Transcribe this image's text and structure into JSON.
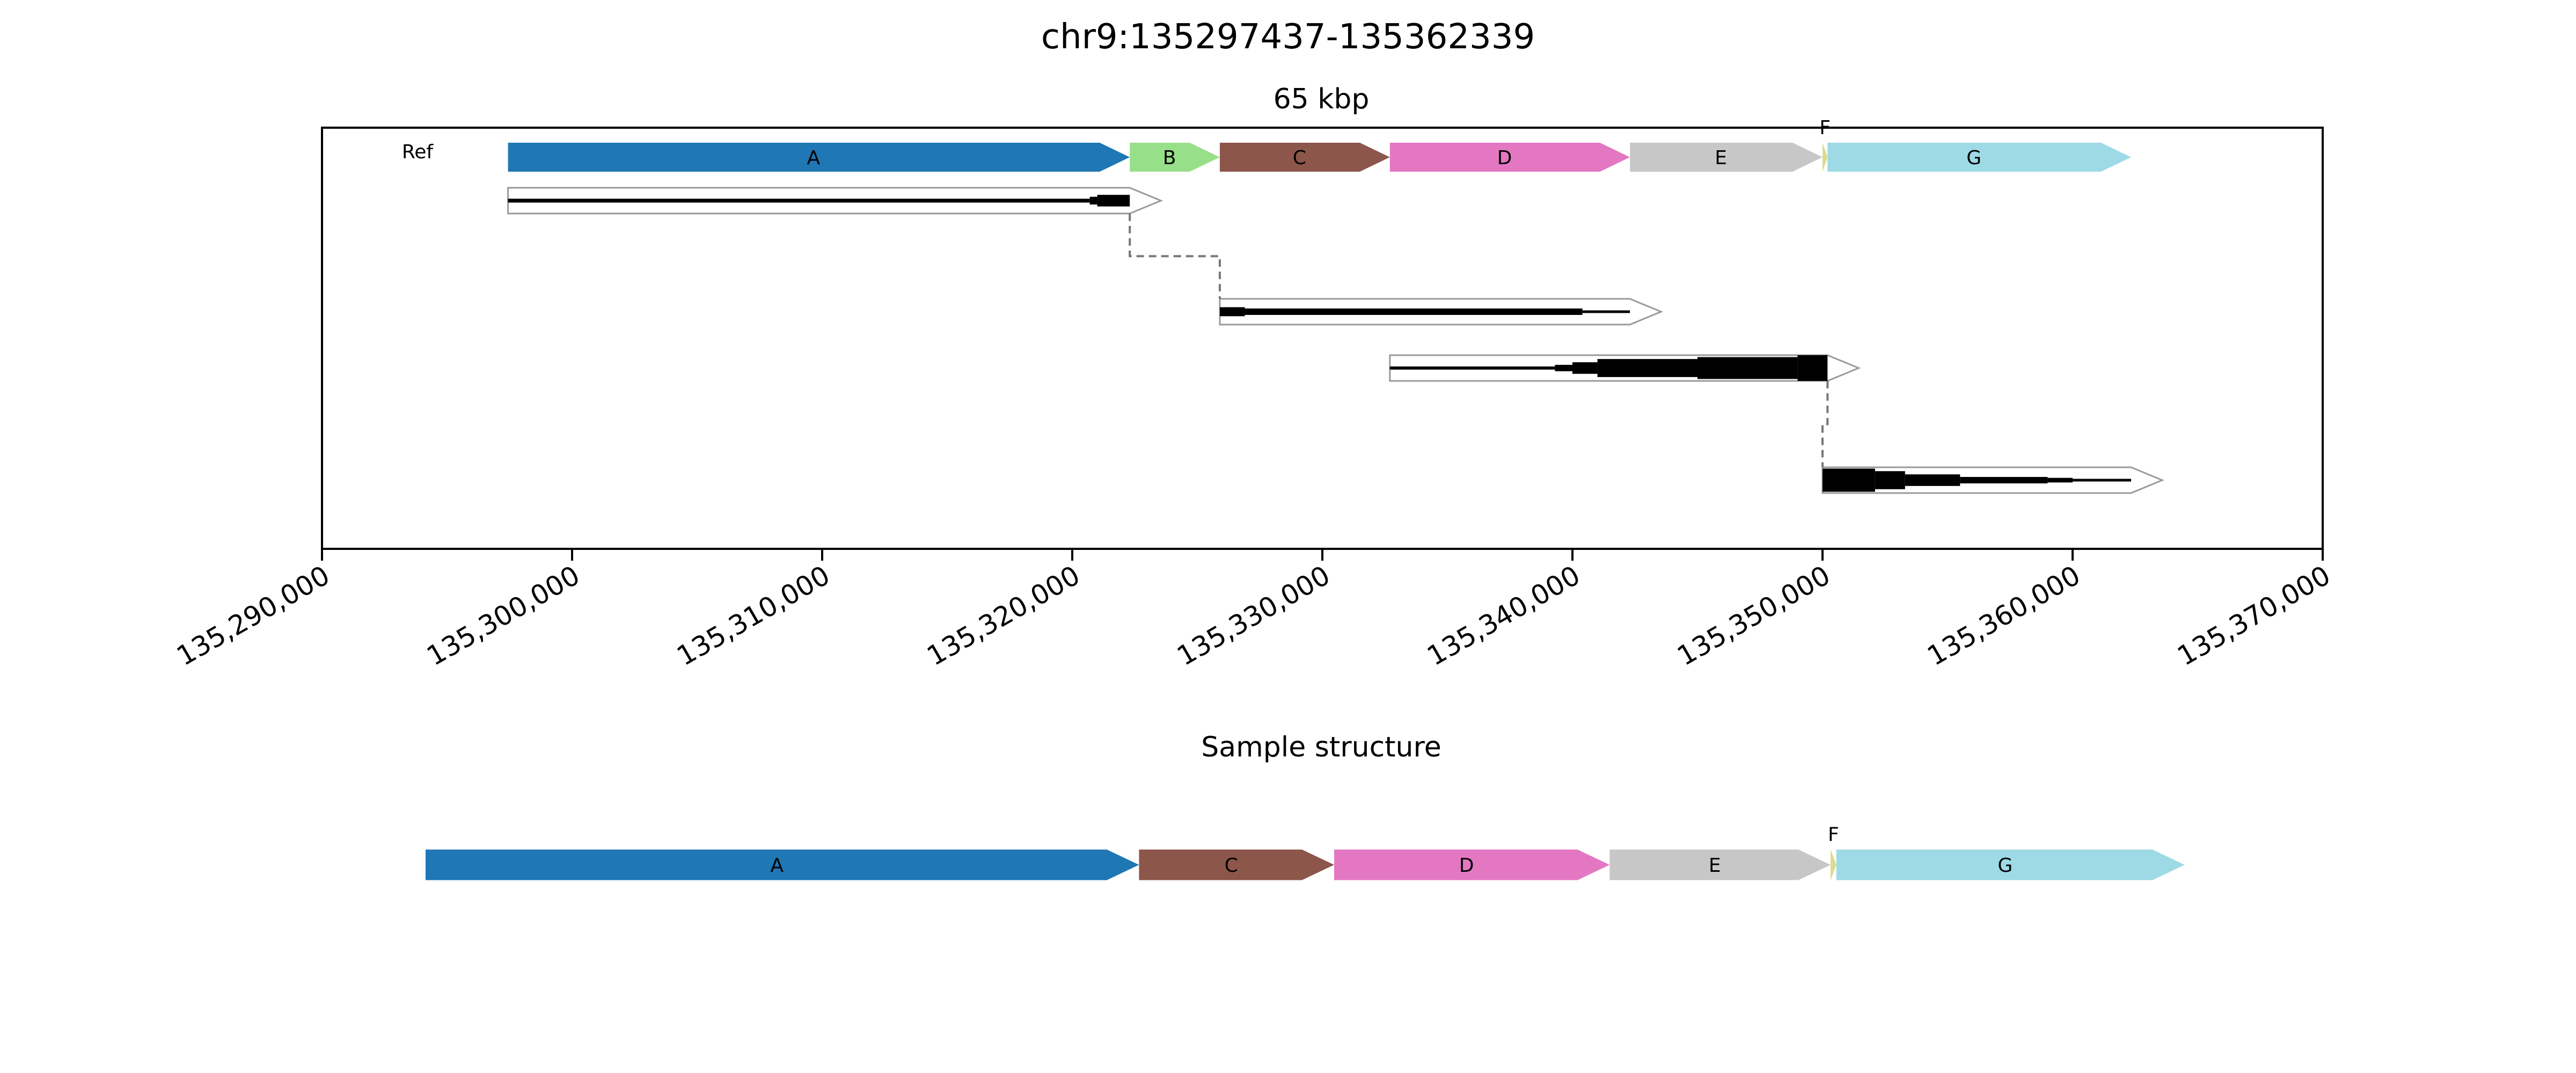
{
  "figure": {
    "title": "chr9:135297437-135362339",
    "span_label": "65 kbp",
    "ref_label": "Ref",
    "sample_title": "Sample structure"
  },
  "axis": {
    "xlim": [
      135290000,
      135370000
    ],
    "ticks": [
      135290000,
      135300000,
      135310000,
      135320000,
      135330000,
      135340000,
      135350000,
      135360000,
      135370000
    ],
    "tick_labels": [
      "135,290,000",
      "135,300,000",
      "135,310,000",
      "135,320,000",
      "135,330,000",
      "135,340,000",
      "135,350,000",
      "135,360,000",
      "135,370,000"
    ],
    "tick_label_rotation_deg": -30
  },
  "chart_data": {
    "type": "genome_structure",
    "region": "chr9:135297437-135362339",
    "reference_segments": [
      {
        "id": "A",
        "label": "A",
        "start": 135297437,
        "end": 135322300,
        "color": "#1f77b4"
      },
      {
        "id": "B",
        "label": "B",
        "start": 135322300,
        "end": 135325900,
        "color": "#98df8a"
      },
      {
        "id": "C",
        "label": "C",
        "start": 135325900,
        "end": 135332700,
        "color": "#8c564b"
      },
      {
        "id": "D",
        "label": "D",
        "start": 135332700,
        "end": 135342300,
        "color": "#e377c2"
      },
      {
        "id": "E",
        "label": "E",
        "start": 135342300,
        "end": 135350000,
        "color": "#c7c7c7"
      },
      {
        "id": "F",
        "label": "F",
        "start": 135350000,
        "end": 135350200,
        "color": "#dbdb8d"
      },
      {
        "id": "G",
        "label": "G",
        "start": 135350200,
        "end": 135362339,
        "color": "#9edae5"
      }
    ],
    "alignments": [
      {
        "row": 0,
        "start": 135297437,
        "end": 135322300,
        "coverage": [
          {
            "start": 135297437,
            "end": 135320700,
            "level": 0.15
          },
          {
            "start": 135320700,
            "end": 135321000,
            "level": 0.3
          },
          {
            "start": 135321000,
            "end": 135322300,
            "level": 0.45
          }
        ]
      },
      {
        "row": 1,
        "start": 135325900,
        "end": 135342300,
        "coverage": [
          {
            "start": 135325900,
            "end": 135326900,
            "level": 0.35
          },
          {
            "start": 135326900,
            "end": 135340400,
            "level": 0.25
          },
          {
            "start": 135340400,
            "end": 135342300,
            "level": 0.08
          }
        ]
      },
      {
        "row": 2,
        "start": 135332700,
        "end": 135350200,
        "coverage": [
          {
            "start": 135332700,
            "end": 135339300,
            "level": 0.12
          },
          {
            "start": 135339300,
            "end": 135340000,
            "level": 0.25
          },
          {
            "start": 135340000,
            "end": 135341000,
            "level": 0.45
          },
          {
            "start": 135341000,
            "end": 135345000,
            "level": 0.7
          },
          {
            "start": 135345000,
            "end": 135349000,
            "level": 0.85
          },
          {
            "start": 135349000,
            "end": 135350200,
            "level": 1.0
          }
        ]
      },
      {
        "row": 3,
        "start": 135350000,
        "end": 135362339,
        "coverage": [
          {
            "start": 135350000,
            "end": 135352100,
            "level": 0.9
          },
          {
            "start": 135352100,
            "end": 135353300,
            "level": 0.7
          },
          {
            "start": 135353300,
            "end": 135355500,
            "level": 0.45
          },
          {
            "start": 135355500,
            "end": 135359000,
            "level": 0.25
          },
          {
            "start": 135359000,
            "end": 135360000,
            "level": 0.18
          },
          {
            "start": 135360000,
            "end": 135362339,
            "level": 0.1
          }
        ]
      }
    ],
    "junctions": [
      {
        "from_row": 0,
        "from_pos": 135322300,
        "to_row": 1,
        "to_pos": 135325900
      },
      {
        "from_row": 2,
        "from_pos": 135350200,
        "to_row": 3,
        "to_pos": 135350000
      }
    ],
    "sample_structure": [
      {
        "id": "A",
        "label": "A",
        "length": 24863
      },
      {
        "id": "C",
        "label": "C",
        "length": 6800
      },
      {
        "id": "D",
        "label": "D",
        "length": 9600
      },
      {
        "id": "E",
        "label": "E",
        "length": 7700
      },
      {
        "id": "F",
        "label": "F",
        "length": 200
      },
      {
        "id": "G",
        "label": "G",
        "length": 12139
      }
    ]
  }
}
